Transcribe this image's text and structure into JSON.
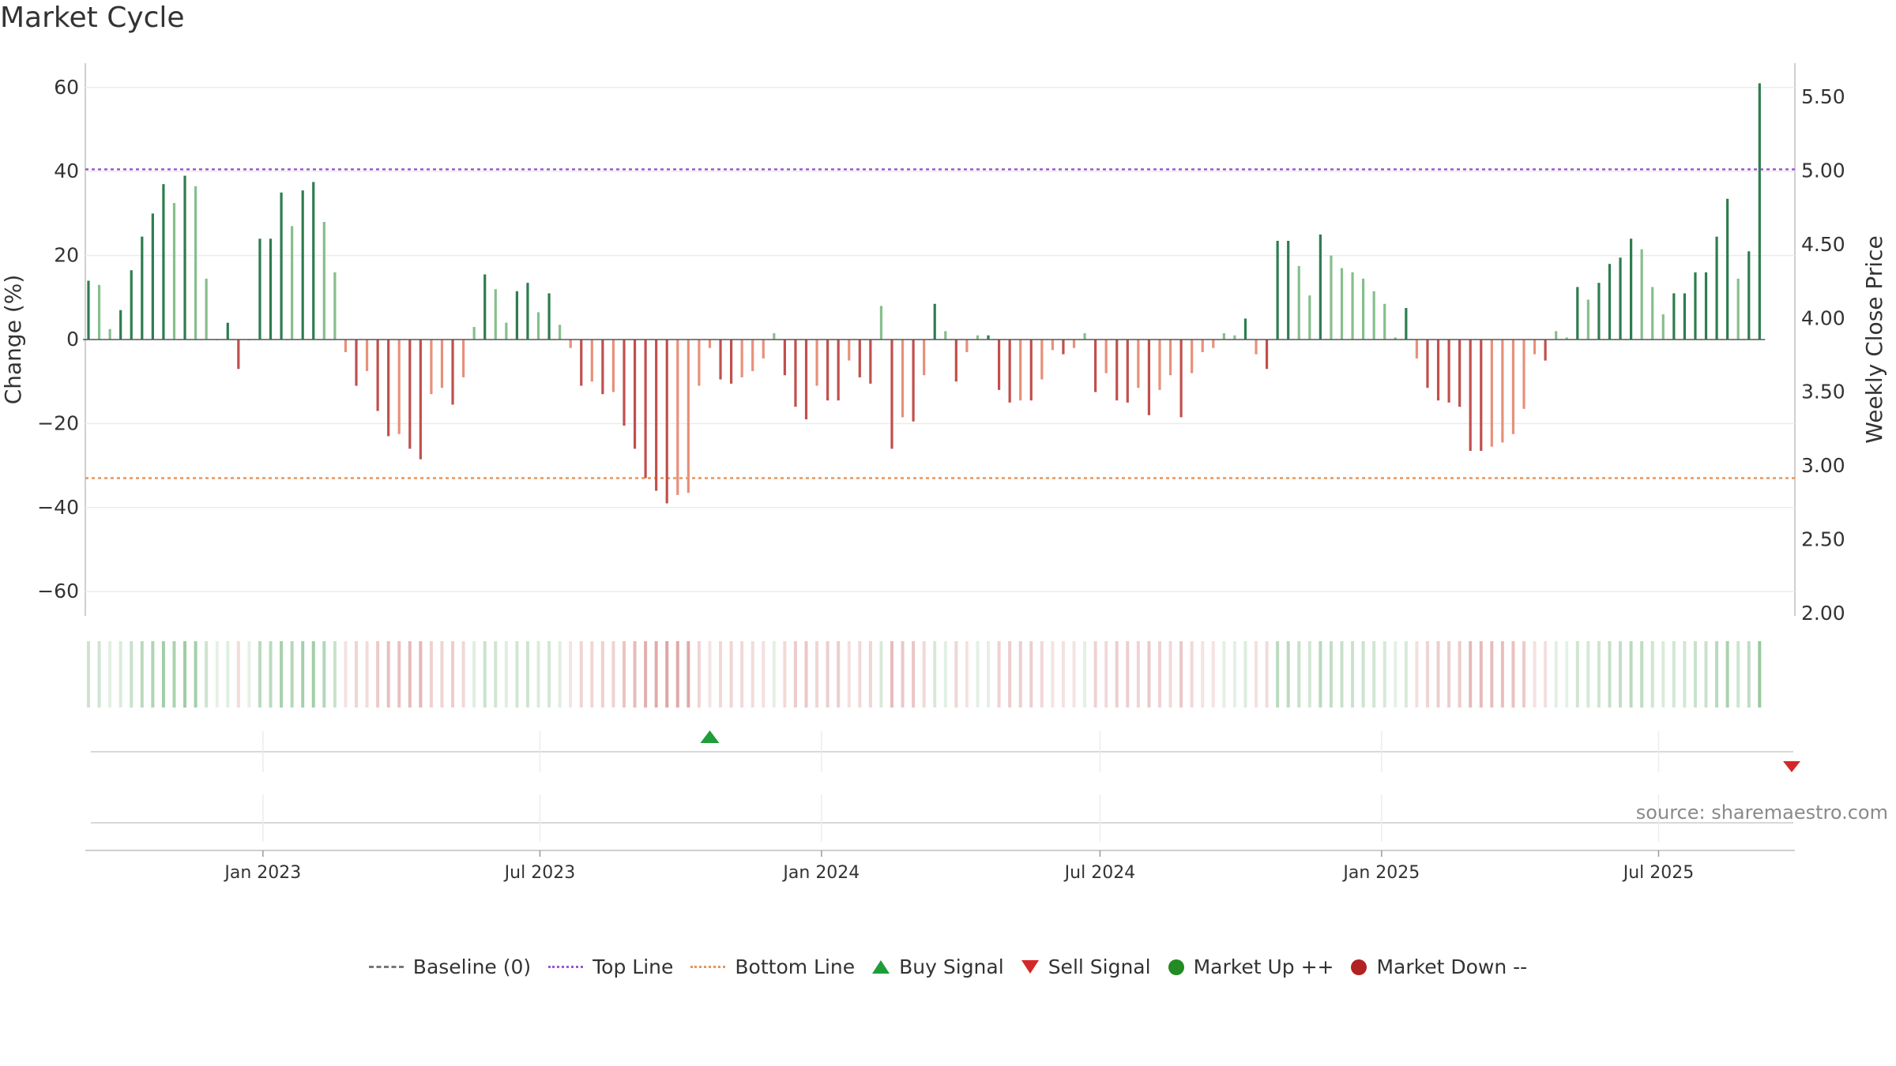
{
  "title": "Market Cycle",
  "source": "source: sharemaestro.com",
  "colors": {
    "up_strong": "#2e7d4f",
    "up_light": "#86bf8c",
    "down_strong": "#c0504d",
    "down_light": "#e8907a",
    "top_line": "#9b59d0",
    "bottom_line": "#e8955a",
    "buy": "#1f9d3a",
    "sell": "#d62728",
    "market_up": "#228b22",
    "market_down": "#b22222"
  },
  "legend": [
    {
      "key": "baseline",
      "label": "Baseline (0)",
      "icon": "dash-line-icon"
    },
    {
      "key": "top",
      "label": "Top Line",
      "icon": "dotted-purple-line-icon"
    },
    {
      "key": "bottom",
      "label": "Bottom Line",
      "icon": "dotted-orange-line-icon"
    },
    {
      "key": "buy",
      "label": "Buy Signal",
      "icon": "triangle-up-icon"
    },
    {
      "key": "sell",
      "label": "Sell Signal",
      "icon": "triangle-down-icon"
    },
    {
      "key": "up",
      "label": "Market Up ++",
      "icon": "green-circle-icon"
    },
    {
      "key": "down",
      "label": "Market Down --",
      "icon": "red-circle-icon"
    }
  ],
  "chart_data": {
    "type": "bar",
    "ylabel": "Change (%)",
    "y2label": "Weekly Close Price",
    "ylim": [
      -66,
      66
    ],
    "yticks": [
      -60,
      -40,
      -20,
      0,
      20,
      40,
      60
    ],
    "yticks_display": [
      "−60",
      "−40",
      "−20",
      "0",
      "20",
      "40",
      "60"
    ],
    "y2lim": [
      2.0,
      5.8
    ],
    "y2ticks": [
      "2.00",
      "2.50",
      "3.00",
      "3.50",
      "4.00",
      "4.50",
      "5.00",
      "5.50"
    ],
    "top_line": 40.5,
    "bottom_line": -33,
    "baseline": 0,
    "x_start": "2022-09-09",
    "x_end": "2025-09-26",
    "xticks": [
      {
        "date": "2023-01-01",
        "label": "Jan 2023"
      },
      {
        "date": "2023-07-01",
        "label": "Jul 2023"
      },
      {
        "date": "2024-01-01",
        "label": "Jan 2024"
      },
      {
        "date": "2024-07-01",
        "label": "Jul 2024"
      },
      {
        "date": "2025-01-01",
        "label": "Jan 2025"
      },
      {
        "date": "2025-07-01",
        "label": "Jul 2025"
      }
    ],
    "series": [
      {
        "start_date": "2022-09-09",
        "interval_days": 7,
        "values": [
          14,
          13,
          2.5,
          7,
          16.5,
          24.5,
          30,
          37,
          32.5,
          39,
          36.5,
          14.5,
          0,
          4,
          -7,
          0,
          24,
          24,
          35,
          27,
          35.5,
          37.5,
          28,
          16,
          -3,
          -11,
          -7.5,
          -17,
          -23,
          -22.5,
          -26,
          -28.5,
          -13,
          -11.5,
          -15.5,
          -9,
          3,
          15.5,
          12,
          4,
          11.5,
          13.5,
          6.5,
          11,
          3.5,
          -2,
          -11,
          -10,
          -13,
          -12.5,
          -20.5,
          -26,
          -33,
          -36,
          -39,
          -37,
          -36.5,
          -11,
          -2,
          -9.5,
          -10.5,
          -9,
          -7.5,
          -4.5,
          1.5,
          -8.5,
          -16,
          -19,
          -11,
          -14.5,
          -14.5,
          -5,
          -9,
          -10.5,
          8,
          -26,
          -18.5,
          -19.5,
          -8.5,
          8.5,
          2,
          -10,
          -3,
          1,
          1,
          -12,
          -15,
          -14.5,
          -14.5,
          -9.5,
          -2.5,
          -3.5,
          -2,
          1.5,
          -12.5,
          -8,
          -14.5,
          -15,
          -11.5,
          -18,
          -12,
          -8.5,
          -18.5,
          -8,
          -3,
          -2,
          1.5,
          1,
          5,
          -3.5,
          -7,
          23.5,
          23.5,
          17.5,
          10.5,
          25,
          20,
          17,
          16,
          14.5,
          11.5,
          8.5,
          0.5,
          7.5,
          -4.5,
          -11.5,
          -14.5,
          -15,
          -16,
          -26.5,
          -26.5,
          -25.5,
          -24.5,
          -22.5,
          -16.5,
          -3.5,
          -5,
          2,
          0.5,
          12.5,
          9.5,
          13.5,
          18,
          19.5,
          24,
          21.5,
          12.5,
          6,
          11,
          11,
          16,
          16,
          24.5,
          33.5,
          14.5,
          21,
          61
        ]
      }
    ],
    "signals": [
      {
        "type": "buy",
        "date": "2023-10-20"
      },
      {
        "type": "sell",
        "date": "2025-09-26"
      }
    ]
  }
}
